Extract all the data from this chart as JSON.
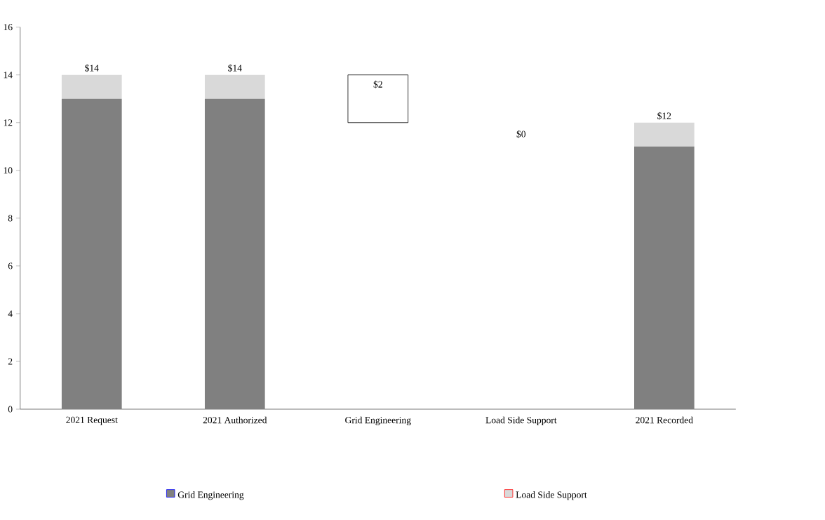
{
  "chart_data": {
    "type": "bar",
    "stacked": true,
    "categories": [
      "2021 Request",
      "2021 Authorized",
      "Grid Engineering",
      "Load Side Support",
      "2021 Recorded"
    ],
    "series": [
      {
        "name": "Grid Engineering",
        "color": "#808080",
        "values": [
          13,
          13,
          null,
          null,
          11
        ]
      },
      {
        "name": "Load Side Support",
        "color": "#d9d9d9",
        "values": [
          1,
          1,
          null,
          null,
          1
        ]
      },
      {
        "color": "#ffffff",
        "values": [
          null,
          null,
          2,
          null,
          null
        ],
        "base": [
          null,
          null,
          12,
          null,
          null
        ]
      }
    ],
    "totals": [
      "$14",
      "$14",
      "$2",
      null,
      "$12"
    ],
    "annotations": [
      "$0"
    ],
    "ylim": [
      0,
      16
    ],
    "yticks": [
      0,
      2,
      4,
      6,
      8,
      10,
      12,
      14,
      16
    ],
    "grid": false,
    "legend": "bottom"
  }
}
